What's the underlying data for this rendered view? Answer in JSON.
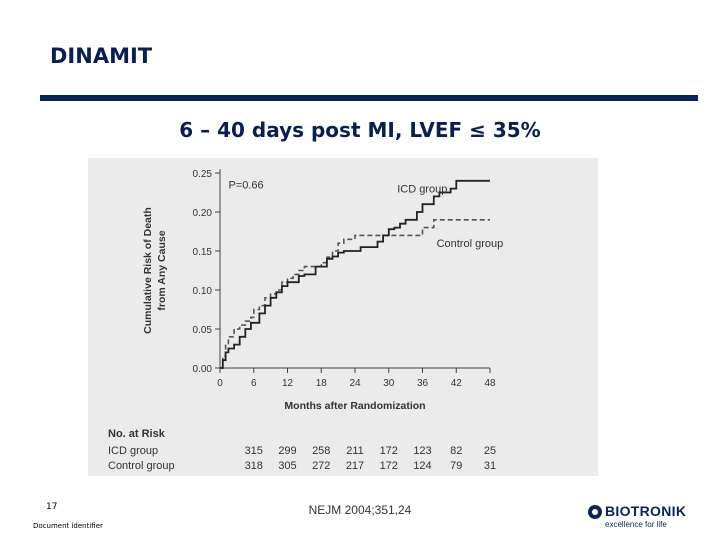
{
  "slide": {
    "title": "DINAMIT",
    "subtitle": "6 – 40 days post MI, LVEF ≤ 35%",
    "page_number": "17",
    "document_identifier": "Document identifier",
    "citation": "NEJM 2004;351,24",
    "logo": {
      "name": "BIOTRONIK",
      "tagline": "excellence for life"
    },
    "colors": {
      "navy": "#0a2458",
      "figure_bg": "#ebebeb"
    }
  },
  "chart_data": {
    "type": "line",
    "title": "",
    "xlabel": "Months after Randomization",
    "ylabel": "Cumulative Risk of Death from Any Cause",
    "ylabel_lines": [
      "Cumulative Risk of Death",
      "from Any Cause"
    ],
    "xlim": [
      0,
      48
    ],
    "ylim": [
      0,
      0.25
    ],
    "xticks": [
      0,
      6,
      12,
      18,
      24,
      30,
      36,
      42,
      48
    ],
    "yticks": [
      0.0,
      0.05,
      0.1,
      0.15,
      0.2,
      0.25
    ],
    "ytick_labels": [
      "0.00",
      "0.05",
      "0.10",
      "0.15",
      "0.20",
      "0.25"
    ],
    "annotation": "P=0.66",
    "series": [
      {
        "name": "ICD group",
        "style": "solid",
        "x": [
          0,
          0.5,
          1,
          1.5,
          2.5,
          3.5,
          4.5,
          5.5,
          7,
          8,
          9,
          10,
          11,
          12,
          13,
          14,
          15,
          17,
          18,
          19,
          20,
          21,
          22,
          24,
          25,
          26,
          28,
          29,
          30,
          31,
          32,
          33,
          34,
          35,
          36,
          37,
          38,
          39,
          40,
          41,
          42,
          44,
          46,
          48
        ],
        "values": [
          0,
          0.01,
          0.02,
          0.025,
          0.03,
          0.04,
          0.05,
          0.058,
          0.07,
          0.08,
          0.09,
          0.097,
          0.105,
          0.11,
          0.11,
          0.118,
          0.12,
          0.13,
          0.13,
          0.14,
          0.143,
          0.148,
          0.15,
          0.15,
          0.155,
          0.155,
          0.162,
          0.17,
          0.178,
          0.18,
          0.185,
          0.19,
          0.19,
          0.2,
          0.21,
          0.21,
          0.22,
          0.225,
          0.225,
          0.23,
          0.24,
          0.24,
          0.24,
          0.24
        ]
      },
      {
        "name": "Control group",
        "style": "dashed",
        "x": [
          0,
          0.5,
          1,
          1.5,
          2.5,
          3.5,
          4.5,
          5.5,
          6,
          7,
          8,
          9,
          10,
          11,
          12,
          13,
          14,
          15,
          17,
          18,
          19,
          20,
          21,
          22,
          24,
          26,
          28,
          30,
          32,
          34,
          36,
          38,
          40,
          42,
          44,
          46,
          48
        ],
        "values": [
          0,
          0.015,
          0.03,
          0.04,
          0.05,
          0.055,
          0.06,
          0.065,
          0.075,
          0.08,
          0.09,
          0.095,
          0.1,
          0.11,
          0.115,
          0.12,
          0.125,
          0.13,
          0.13,
          0.135,
          0.142,
          0.15,
          0.16,
          0.165,
          0.17,
          0.17,
          0.17,
          0.17,
          0.17,
          0.17,
          0.18,
          0.19,
          0.19,
          0.19,
          0.19,
          0.19,
          0.19
        ]
      }
    ],
    "at_risk": {
      "heading": "No. at Risk",
      "months": [
        6,
        12,
        18,
        24,
        30,
        36,
        42,
        48
      ],
      "rows": [
        {
          "group": "ICD group",
          "values": [
            315,
            299,
            258,
            211,
            172,
            123,
            82,
            25
          ]
        },
        {
          "group": "Control group",
          "values": [
            318,
            305,
            272,
            217,
            172,
            124,
            79,
            31
          ]
        }
      ]
    }
  }
}
